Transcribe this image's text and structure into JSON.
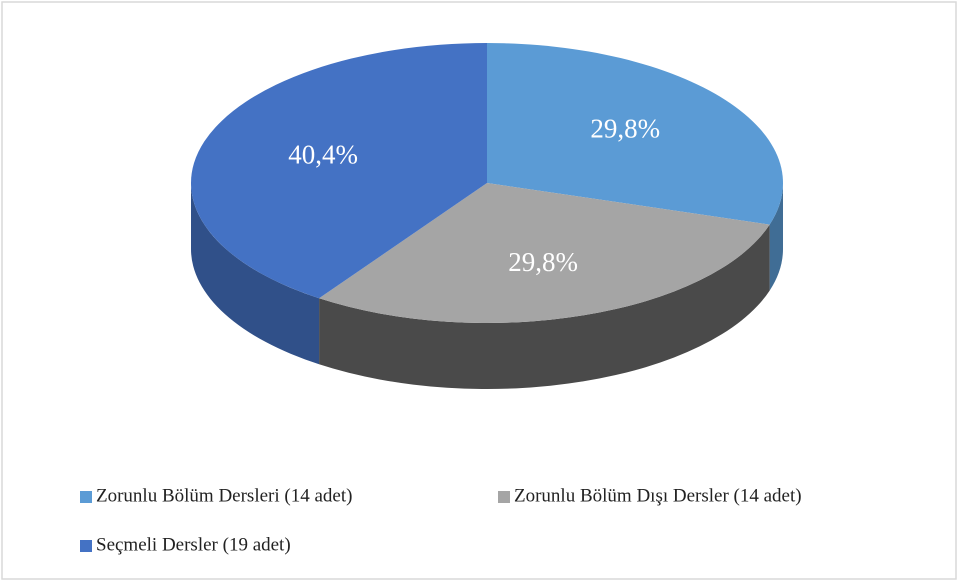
{
  "chart_data": {
    "type": "pie",
    "categories": [
      "Zorunlu Bölüm Dersleri (14 adet)",
      "Zorunlu Bölüm Dışı Dersler (14 adet)",
      "Seçmeli Dersler (19 adet)"
    ],
    "values": [
      29.8,
      29.8,
      40.4
    ],
    "value_labels": [
      "29,8%",
      "29,8%",
      "40,4%"
    ],
    "colors": [
      "#5b9bd5",
      "#a5a5a5",
      "#4472c4"
    ],
    "legend": "bottom"
  }
}
